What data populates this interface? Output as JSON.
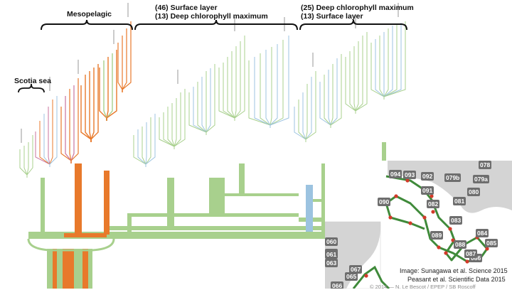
{
  "groups": {
    "mesopelagic": "Mesopelagic",
    "scotia_sea": "Scotia sea",
    "surface_block": [
      "(46) Surface layer",
      "(13) Deep chlorophyll maximum"
    ],
    "dcm_block": [
      "(25) Deep chlorophyll maximum",
      "(13) Surface layer"
    ]
  },
  "map": {
    "stations": [
      "094",
      "093",
      "092",
      "079b",
      "078",
      "091",
      "080",
      "079a",
      "090",
      "082",
      "081",
      "083",
      "089",
      "084",
      "085",
      "088",
      "086",
      "087",
      "069",
      "060",
      "061",
      "063",
      "067",
      "065",
      "066"
    ]
  },
  "credits": {
    "image_line": "Image: Sunagawa et al. Science 2015",
    "data_line": "Peasant et al. Scientific Data 2015",
    "copyright": "© 2014 — N. Le Bescot / EPEP / SB Roscoff"
  },
  "colors": {
    "branch_green": "#a8d08d",
    "branch_orange": "#e8792b",
    "branch_blue": "#9cc3e0",
    "branch_pink": "#c9739e",
    "map_land": "#d4d4d4",
    "map_route": "#3f8a3a",
    "map_station": "#d23a2a",
    "map_label_bg": "#6e6e6e"
  }
}
